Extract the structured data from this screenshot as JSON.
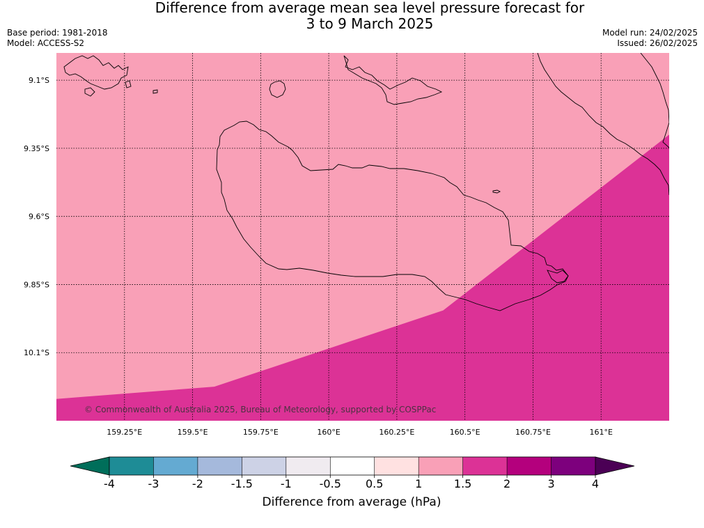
{
  "title_line1": "Difference from average mean sea level pressure forecast for",
  "title_line2": "3 to 9 March 2025",
  "base_period": "Base period: 1981-2018",
  "model": "Model: ACCESS-S2",
  "model_run": "Model run: 24/02/2025",
  "issued": "Issued: 26/02/2025",
  "copyright": "© Commonwealth of Australia 2025, Bureau of Meteorology, supported by COSPPac",
  "colors": {
    "light_pink": "#f9a0b7",
    "magenta": "#dc3296",
    "grid": "#000000"
  },
  "map": {
    "lat_range": [
      -10.35,
      -9.0
    ],
    "lon_range": [
      159.0,
      161.25
    ],
    "lat_ticks": [
      {
        "value": -9.1,
        "label": "9.1°S"
      },
      {
        "value": -9.35,
        "label": "9.35°S"
      },
      {
        "value": -9.6,
        "label": "9.6°S"
      },
      {
        "value": -9.85,
        "label": "9.85°S"
      },
      {
        "value": -10.1,
        "label": "10.1°S"
      }
    ],
    "lon_ticks": [
      {
        "value": 159.25,
        "label": "159.25°E"
      },
      {
        "value": 159.5,
        "label": "159.5°E"
      },
      {
        "value": 159.75,
        "label": "159.75°E"
      },
      {
        "value": 160.0,
        "label": "160°E"
      },
      {
        "value": 160.25,
        "label": "160.25°E"
      },
      {
        "value": 160.5,
        "label": "160.5°E"
      },
      {
        "value": 160.75,
        "label": "160.75°E"
      },
      {
        "value": 161.0,
        "label": "161°E"
      }
    ],
    "contour_1_5": [
      [
        159.0,
        -10.27
      ],
      [
        159.58,
        -10.225
      ],
      [
        160.42,
        -9.945
      ],
      [
        161.25,
        -9.3
      ]
    ],
    "fill_above": "light_pink",
    "fill_below": "magenta"
  },
  "colorbar": {
    "label": "Difference from average (hPa)",
    "ticks": [
      "-4",
      "-3",
      "-2",
      "-1.5",
      "-1",
      "-0.5",
      "0.5",
      "1",
      "1.5",
      "2",
      "3",
      "4"
    ],
    "under_color": "#006e5a",
    "over_color": "#4b0055",
    "colors": [
      "#1e8c96",
      "#64aad2",
      "#a5b9dc",
      "#cdd2e6",
      "#f0ebf0",
      "#ffffff",
      "#ffe1e1",
      "#f9a0b7",
      "#dc3296",
      "#b4007d",
      "#7d007d"
    ]
  }
}
